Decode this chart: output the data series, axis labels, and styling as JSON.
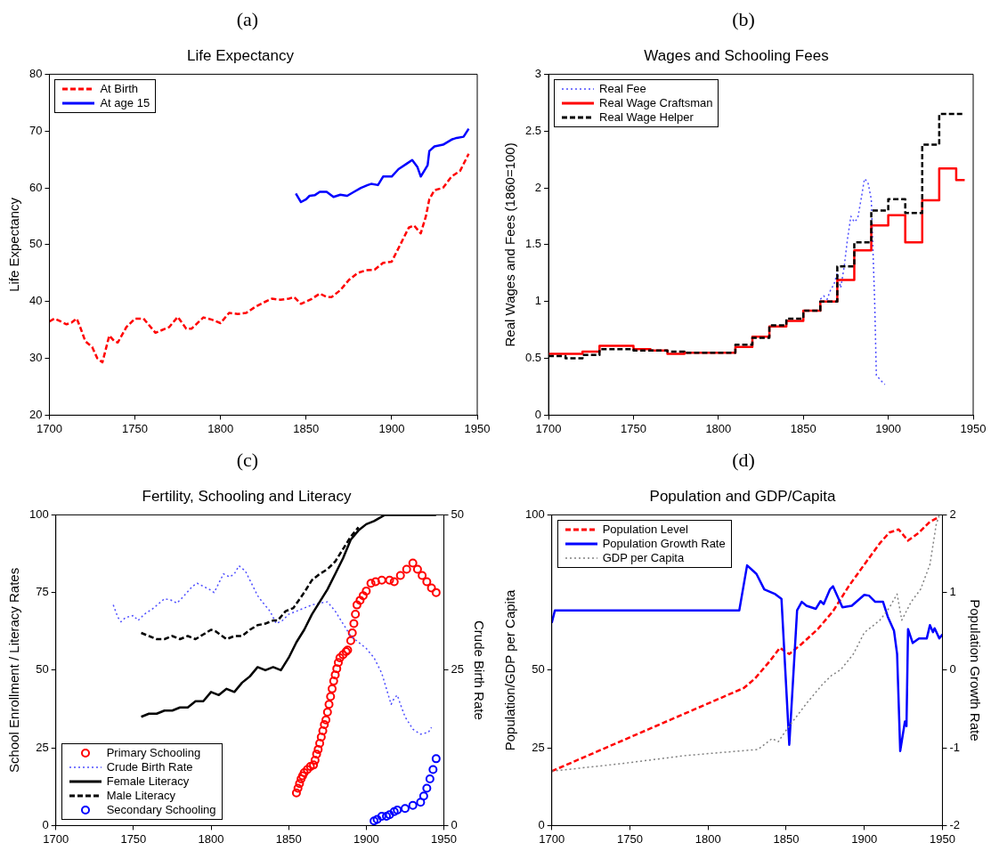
{
  "chart_data": [
    {
      "type": "line",
      "annotations": [
        "(a)"
      ],
      "title": "Life Expectancy",
      "ylabel": "Life Expectancy",
      "xlim": [
        1700,
        1950
      ],
      "xticks": [
        1700,
        1750,
        1800,
        1850,
        1900,
        1950
      ],
      "ylim": [
        20,
        80
      ],
      "yticks": [
        20,
        30,
        40,
        50,
        60,
        70,
        80
      ],
      "legend": "top left",
      "series": [
        {
          "name": "At Birth",
          "color": "#ff0000",
          "line_style": "dashed",
          "x": [
            1700,
            1703,
            1710,
            1713,
            1716,
            1718,
            1721,
            1725,
            1728,
            1731,
            1735,
            1738,
            1740,
            1745,
            1750,
            1755,
            1762,
            1770,
            1775,
            1780,
            1783,
            1790,
            1795,
            1800,
            1805,
            1810,
            1815,
            1820,
            1825,
            1830,
            1835,
            1840,
            1843,
            1847,
            1853,
            1858,
            1862,
            1865,
            1870,
            1875,
            1880,
            1885,
            1890,
            1895,
            1900,
            1905,
            1910,
            1913,
            1917,
            1920,
            1922,
            1925,
            1930,
            1935,
            1940,
            1945
          ],
          "values": [
            36.5,
            37,
            36,
            36.3,
            37,
            35.5,
            33,
            32,
            30,
            29.3,
            34,
            33,
            32.8,
            35.5,
            37,
            37,
            34.5,
            35.5,
            37.3,
            35.2,
            35.2,
            37.2,
            36.8,
            36.2,
            38,
            37.8,
            38,
            39,
            39.8,
            40.5,
            40.3,
            40.5,
            40.8,
            39.6,
            40.4,
            41.4,
            40.8,
            40.8,
            42,
            43.8,
            45,
            45.5,
            45.6,
            46.8,
            47,
            50,
            53,
            53.4,
            52,
            55,
            58,
            59.6,
            60,
            62,
            63,
            66
          ]
        },
        {
          "name": "At age 15",
          "color": "#0000ff",
          "line_style": "solid",
          "x": [
            1844,
            1847,
            1850,
            1852,
            1855,
            1858,
            1862,
            1866,
            1870,
            1874,
            1878,
            1882,
            1886,
            1888,
            1892,
            1895,
            1900,
            1904,
            1909,
            1912,
            1915,
            1917,
            1921,
            1922,
            1925,
            1930,
            1935,
            1938,
            1942,
            1945
          ],
          "values": [
            59,
            57.5,
            58,
            58.6,
            58.7,
            59.3,
            59.3,
            58.4,
            58.8,
            58.6,
            59.3,
            60,
            60.5,
            60.7,
            60.5,
            62,
            62,
            63.3,
            64.3,
            64.9,
            63.7,
            62,
            64,
            66.5,
            67.3,
            67.6,
            68.5,
            68.8,
            69,
            70.4
          ]
        }
      ]
    },
    {
      "type": "line",
      "annotations": [
        "(b)"
      ],
      "title": "Wages and Schooling Fees",
      "ylabel": "Real Wages and Fees (1860=100)",
      "xlim": [
        1700,
        1950
      ],
      "xticks": [
        1700,
        1750,
        1800,
        1850,
        1900,
        1950
      ],
      "ylim": [
        0,
        3
      ],
      "yticks": [
        0,
        0.5,
        1,
        1.5,
        2,
        2.5,
        3
      ],
      "legend": "top left",
      "series": [
        {
          "name": "Real Fee",
          "color": "#4d4dff",
          "line_style": "dotted",
          "x": [
            1860,
            1862,
            1864,
            1866,
            1868,
            1870,
            1872,
            1874,
            1876,
            1878,
            1880,
            1882,
            1884,
            1886,
            1888,
            1890,
            1892,
            1893,
            1896,
            1898
          ],
          "values": [
            1.02,
            1.05,
            1.02,
            1.1,
            1.15,
            1.25,
            1.12,
            1.3,
            1.55,
            1.75,
            1.7,
            1.73,
            1.9,
            2.08,
            2.05,
            1.9,
            1,
            0.35,
            0.3,
            0.27
          ]
        },
        {
          "name": "Real Wage Craftsman",
          "type": "step",
          "color": "#ff0000",
          "line_style": "solid",
          "x": [
            1700,
            1720,
            1730,
            1750,
            1760,
            1770,
            1780,
            1810,
            1820,
            1830,
            1840,
            1850,
            1860,
            1870,
            1880,
            1890,
            1900,
            1910,
            1920,
            1930,
            1940,
            1945
          ],
          "values": [
            0.54,
            0.56,
            0.61,
            0.58,
            0.57,
            0.54,
            0.55,
            0.6,
            0.69,
            0.78,
            0.83,
            0.92,
            1,
            1.19,
            1.45,
            1.67,
            1.76,
            1.52,
            1.89,
            2.17,
            2.07,
            2.07
          ]
        },
        {
          "name": "Real Wage Helper",
          "type": "step",
          "color": "#000000",
          "line_style": "dashed",
          "x": [
            1700,
            1710,
            1720,
            1730,
            1750,
            1770,
            1780,
            1800,
            1810,
            1820,
            1830,
            1840,
            1850,
            1860,
            1870,
            1880,
            1890,
            1900,
            1910,
            1920,
            1930,
            1945
          ],
          "values": [
            0.52,
            0.5,
            0.53,
            0.58,
            0.57,
            0.56,
            0.55,
            0.55,
            0.62,
            0.68,
            0.79,
            0.85,
            0.92,
            1,
            1.31,
            1.52,
            1.8,
            1.9,
            1.78,
            2.38,
            2.65,
            2.65
          ]
        }
      ]
    },
    {
      "type": "line",
      "annotations": [
        "(c)"
      ],
      "title": "Fertility, Schooling and Literacy",
      "ylabel": "School Enrollment / Literacy Rates",
      "y2label": "Crude Birth Rate",
      "xlim": [
        1700,
        1950
      ],
      "xticks": [
        1700,
        1750,
        1800,
        1850,
        1900,
        1950
      ],
      "ylim": [
        0,
        100
      ],
      "yticks": [
        0,
        25,
        50,
        75,
        100
      ],
      "y2lim": [
        0,
        50
      ],
      "y2ticks": [
        0,
        25,
        50
      ],
      "legend": "bottom left",
      "series": [
        {
          "name": "Primary Schooling",
          "type": "scatter",
          "marker": "circle",
          "color": "#ff0000",
          "x": [
            1855,
            1856,
            1857,
            1858,
            1859,
            1860,
            1862,
            1864,
            1866,
            1867,
            1868,
            1869,
            1870,
            1871,
            1872,
            1873,
            1874,
            1875,
            1876,
            1877,
            1878,
            1879,
            1880,
            1881,
            1882,
            1883,
            1885,
            1887,
            1888,
            1890,
            1891,
            1892,
            1893,
            1894,
            1896,
            1898,
            1900,
            1903,
            1906,
            1910,
            1915,
            1918,
            1922,
            1926,
            1930,
            1933,
            1936,
            1939,
            1942,
            1945
          ],
          "values": [
            10.5,
            12,
            13.5,
            15,
            16,
            17,
            18,
            19,
            19.5,
            21,
            23,
            24.5,
            26.5,
            28.5,
            30.5,
            32.5,
            34,
            36.5,
            39,
            41.5,
            44,
            46.5,
            48.5,
            50.5,
            52.5,
            54,
            55,
            56,
            56.5,
            59.5,
            62,
            65,
            68,
            71,
            72.5,
            74,
            75.5,
            78,
            78.5,
            79,
            79,
            78.5,
            80.5,
            82.5,
            84.5,
            82.5,
            80.5,
            78.5,
            76.5,
            75
          ]
        },
        {
          "name": "Crude Birth Rate",
          "axis": "y2",
          "color": "#4d4dff",
          "line_style": "dotted",
          "x": [
            1737,
            1740,
            1742,
            1745,
            1750,
            1753,
            1757,
            1763,
            1770,
            1774,
            1778,
            1782,
            1788,
            1791,
            1795,
            1799,
            1802,
            1806,
            1808,
            1812,
            1815,
            1818,
            1822,
            1826,
            1830,
            1833,
            1838,
            1842,
            1846,
            1850,
            1855,
            1860,
            1865,
            1870,
            1875,
            1880,
            1885,
            1890,
            1895,
            1900,
            1905,
            1910,
            1913,
            1916,
            1918,
            1920,
            1922,
            1925,
            1930,
            1935,
            1940,
            1942
          ],
          "values": [
            35.5,
            33.5,
            32.8,
            33.5,
            33.8,
            33,
            34,
            35,
            36.5,
            36.3,
            35.8,
            36.8,
            38.5,
            39,
            38.5,
            38,
            37.5,
            39.5,
            40.5,
            40,
            40.5,
            41.8,
            41,
            39,
            37,
            36,
            34.5,
            32.5,
            33,
            34,
            34.5,
            35,
            35.5,
            35.8,
            36,
            34.5,
            32.5,
            30.5,
            29.5,
            28.5,
            27,
            24.5,
            22,
            19.5,
            20.5,
            21,
            19.5,
            17.5,
            15.5,
            14.7,
            15,
            15.8
          ]
        },
        {
          "name": "Female Literacy",
          "color": "#000000",
          "line_style": "solid",
          "x": [
            1755,
            1760,
            1765,
            1770,
            1775,
            1780,
            1785,
            1790,
            1795,
            1800,
            1805,
            1810,
            1815,
            1820,
            1825,
            1830,
            1835,
            1840,
            1845,
            1850,
            1855,
            1860,
            1865,
            1870,
            1875,
            1880,
            1885,
            1890,
            1895,
            1900,
            1905,
            1912,
            1945
          ],
          "values": [
            35,
            36,
            36,
            37,
            37,
            38,
            38,
            40,
            40,
            43,
            42,
            44,
            43,
            46,
            48,
            51,
            50,
            51,
            50,
            54,
            59,
            63,
            68,
            72,
            76,
            81,
            86,
            92,
            95,
            97,
            98,
            100,
            100
          ]
        },
        {
          "name": "Male Literacy",
          "color": "#000000",
          "line_style": "dashed",
          "x": [
            1755,
            1760,
            1765,
            1770,
            1775,
            1780,
            1785,
            1790,
            1795,
            1800,
            1803,
            1810,
            1815,
            1820,
            1825,
            1830,
            1835,
            1840,
            1843,
            1848,
            1853,
            1860,
            1865,
            1870,
            1875,
            1880,
            1885,
            1890,
            1895
          ],
          "values": [
            62,
            61,
            60,
            60,
            61,
            60,
            61,
            60,
            61.5,
            63,
            62.5,
            60,
            61,
            61,
            63,
            64.5,
            65,
            66,
            66,
            69,
            70,
            75,
            79,
            81,
            82.5,
            85,
            89,
            93,
            96
          ]
        },
        {
          "name": "Secondary Schooling",
          "type": "scatter",
          "marker": "circle",
          "color": "#0000ff",
          "x": [
            1905,
            1907,
            1910,
            1913,
            1915,
            1918,
            1920,
            1925,
            1930,
            1935,
            1937,
            1939,
            1941,
            1943,
            1945
          ],
          "values": [
            1.5,
            2,
            3,
            3,
            3.5,
            4.5,
            5,
            5.5,
            6.5,
            7.5,
            9.5,
            12,
            15,
            18,
            21.5
          ]
        }
      ]
    },
    {
      "type": "line",
      "annotations": [
        "(d)"
      ],
      "title": "Population and GDP/Capita",
      "ylabel": "Population/GDP per Capita",
      "y2label": "Population Growth Rate",
      "xlim": [
        1700,
        1950
      ],
      "xticks": [
        1700,
        1750,
        1800,
        1850,
        1900,
        1950
      ],
      "ylim": [
        0,
        100
      ],
      "yticks": [
        0,
        25,
        50,
        100
      ],
      "y2lim": [
        -2,
        2
      ],
      "y2ticks": [
        -2,
        -1,
        0,
        1,
        2
      ],
      "legend": "top left",
      "series": [
        {
          "name": "Population Level",
          "color": "#ff0000",
          "line_style": "dashed",
          "x": [
            1700,
            1823,
            1830,
            1840,
            1846,
            1852,
            1860,
            1870,
            1880,
            1890,
            1900,
            1910,
            1916,
            1922,
            1928,
            1935,
            1942,
            1948
          ],
          "values": [
            17.5,
            44.3,
            47.3,
            53.2,
            57.2,
            55.2,
            58.5,
            63.1,
            69,
            77,
            84,
            90.9,
            94.3,
            95.3,
            91.7,
            94.3,
            97.8,
            99.3
          ]
        },
        {
          "name": "Population Growth Rate",
          "axis": "y2",
          "color": "#0000ff",
          "line_style": "solid",
          "x": [
            1700,
            1702,
            1820,
            1825,
            1831,
            1836,
            1843,
            1847,
            1852,
            1857,
            1860,
            1863,
            1869,
            1872,
            1874,
            1878,
            1880,
            1886,
            1892,
            1900,
            1903,
            1907,
            1912,
            1915,
            1919,
            1921,
            1923,
            1926,
            1927,
            1928,
            1931,
            1935,
            1940,
            1942,
            1944,
            1945,
            1948,
            1950
          ],
          "values": [
            0.61,
            0.77,
            0.77,
            1.35,
            1.24,
            1.04,
            0.98,
            0.92,
            -0.96,
            0.77,
            0.88,
            0.83,
            0.79,
            0.89,
            0.85,
            1.04,
            1.08,
            0.81,
            0.83,
            0.97,
            0.96,
            0.88,
            0.88,
            0.69,
            0.51,
            0.21,
            -1.04,
            -0.66,
            -0.72,
            0.53,
            0.35,
            0.41,
            0.41,
            0.58,
            0.49,
            0.54,
            0.41,
            0.46
          ]
        },
        {
          "name": "GDP per Capita",
          "color": "#808080",
          "line_style": "dotted",
          "x": [
            1700,
            1746,
            1785,
            1832,
            1841,
            1845,
            1851,
            1863,
            1873,
            1879,
            1885,
            1893,
            1900,
            1910,
            1916,
            1921,
            1924,
            1930,
            1936,
            1942,
            1946,
            1948
          ],
          "values": [
            17.5,
            20,
            22.5,
            24.5,
            28,
            27,
            31.4,
            39.3,
            45.3,
            48.3,
            50.2,
            55.2,
            62.1,
            66.1,
            70.1,
            74.5,
            66.1,
            72,
            76,
            84,
            96.8,
            100
          ]
        }
      ]
    }
  ]
}
